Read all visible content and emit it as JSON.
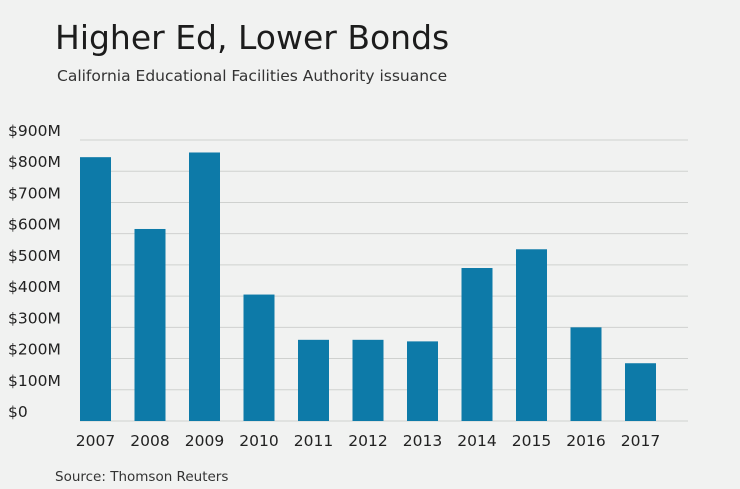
{
  "header": {
    "title": "Higher Ed, Lower Bonds",
    "subtitle": "California Educational Facilities Authority issuance"
  },
  "footer": {
    "source": "Source: Thomson Reuters"
  },
  "colors": {
    "bar": "#0d7aa8",
    "grid": "#cfd1cf",
    "background": "#f1f2f1"
  },
  "chart_data": {
    "type": "bar",
    "categories": [
      "2007",
      "2008",
      "2009",
      "2010",
      "2011",
      "2012",
      "2013",
      "2014",
      "2015",
      "2016",
      "2017"
    ],
    "values": [
      845,
      615,
      860,
      405,
      260,
      260,
      255,
      490,
      550,
      300,
      185
    ],
    "y_tick_values": [
      0,
      100,
      200,
      300,
      400,
      500,
      600,
      700,
      800,
      900
    ],
    "y_tick_labels": [
      "$0",
      "$100M",
      "$200M",
      "$300M",
      "$400M",
      "$500M",
      "$600M",
      "$700M",
      "$800M",
      "$900M"
    ],
    "ylim": [
      0,
      900
    ],
    "grid": true,
    "legend": "none"
  }
}
